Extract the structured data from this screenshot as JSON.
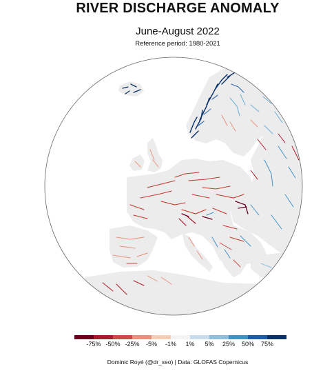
{
  "title": "RIVER DISCHARGE ANOMALY",
  "subtitle": "June-August 2022",
  "reference": "Reference period: 1980-2021",
  "legend": {
    "labels": [
      "-75%",
      "-50%",
      "-25%",
      "-5%",
      "-1%",
      "1%",
      "5%",
      "25%",
      "50%",
      "75%"
    ],
    "colors": [
      "#67001f",
      "#a51d2d",
      "#cd4a46",
      "#e8917a",
      "#f7cdb8",
      "#f4f4f4",
      "#c7dded",
      "#8ebfdc",
      "#4191c6",
      "#1c5ea5",
      "#08306b"
    ]
  },
  "credit": "Dominic Royé (@dr_xeo) | Data: GLOFAS Copernicus",
  "colors": {
    "land": "#ececec",
    "globe_outline": "#666666",
    "dry": "#b2182b",
    "wet": "#2166ac"
  }
}
